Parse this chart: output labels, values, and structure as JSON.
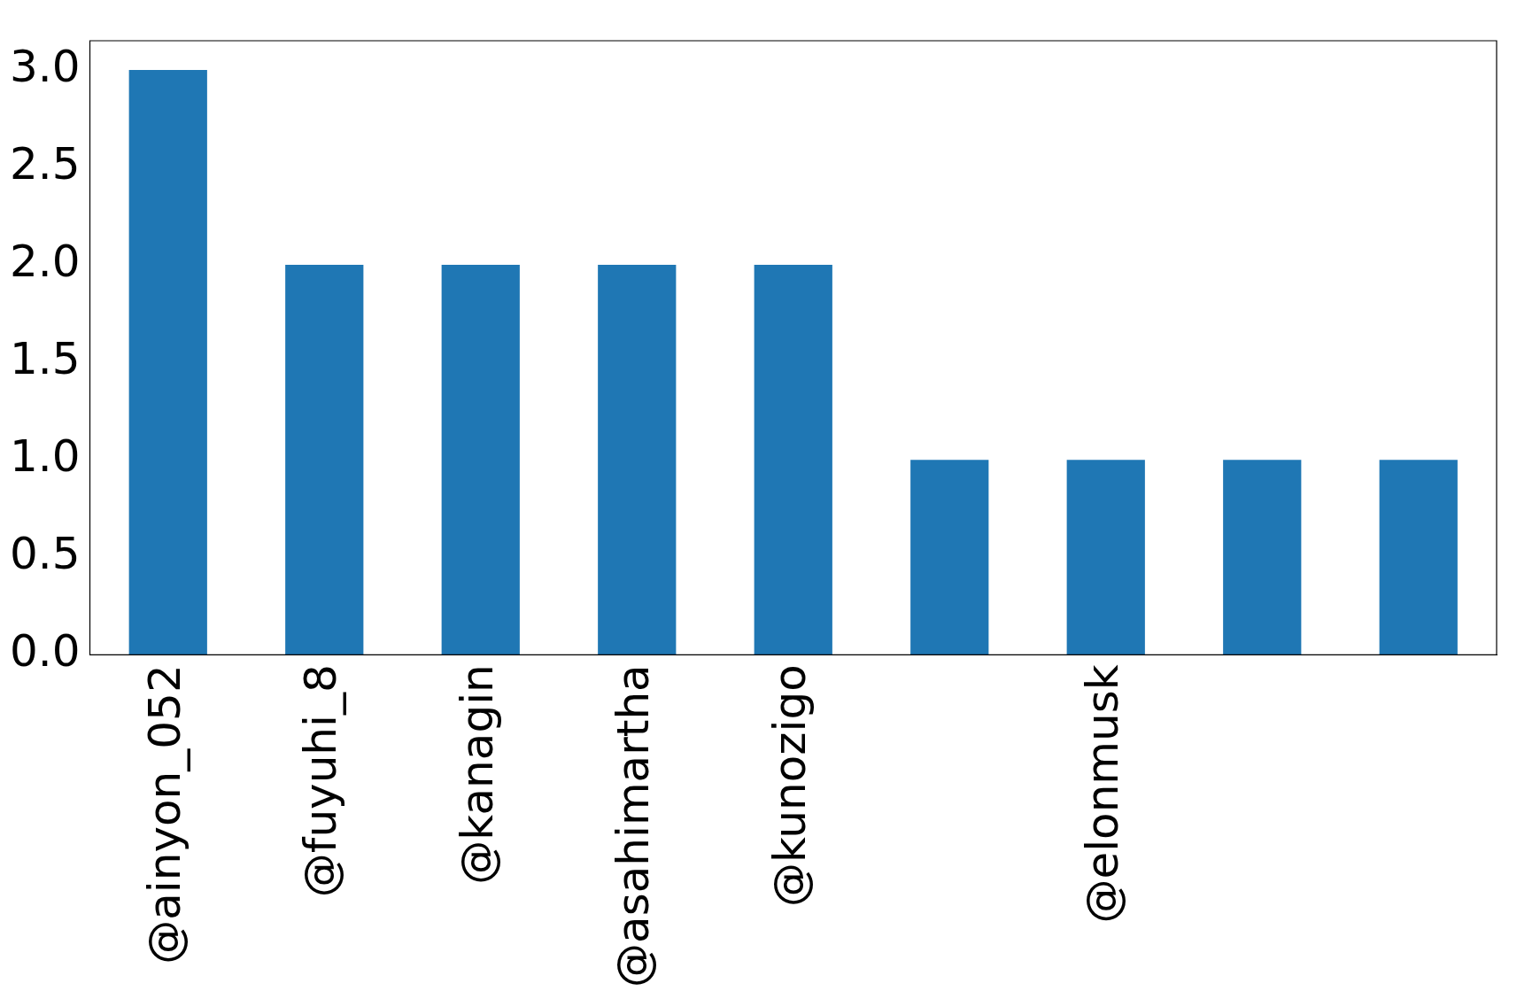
{
  "chart_data": {
    "type": "bar",
    "categories": [
      "@ainyon_052",
      "@fuyuhi_8",
      "@kanagin",
      "@asahimartha",
      "@kunozigo",
      null,
      "@elonmusk",
      null,
      null
    ],
    "values": [
      3,
      2,
      2,
      2,
      2,
      1,
      1,
      1,
      1
    ],
    "color": "#1f77b4",
    "ylim": [
      0,
      3.15
    ],
    "yticks": [
      {
        "value": 0,
        "label": "0.0"
      },
      {
        "value": 0.5,
        "label": "0.5"
      },
      {
        "value": 1,
        "label": "1.0"
      },
      {
        "value": 1.5,
        "label": "1.5"
      },
      {
        "value": 2,
        "label": "2.0"
      },
      {
        "value": 2.5,
        "label": "2.5"
      },
      {
        "value": 3,
        "label": "3.0"
      }
    ],
    "grid": false,
    "legend": false
  }
}
